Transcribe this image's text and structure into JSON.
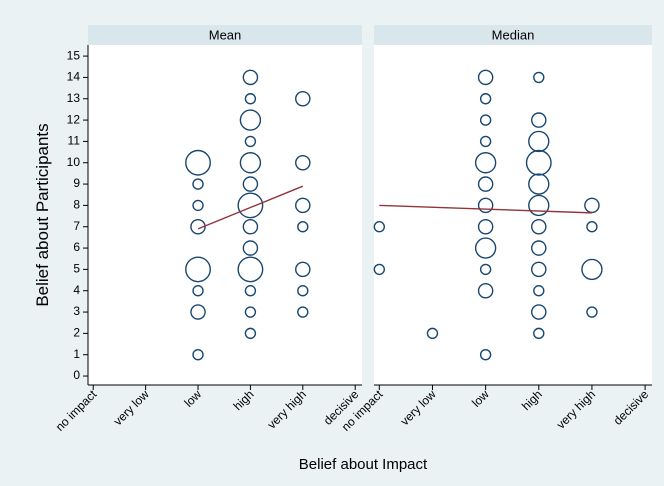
{
  "x_label": "Belief about Impact",
  "y_label": "Belief about Participants",
  "chart_data": [
    {
      "type": "scatter",
      "title": "Mean",
      "xlim": [
        0.9,
        6.13
      ],
      "ylim": [
        -0.42,
        15.52
      ],
      "xticks": [
        {
          "value": 1,
          "label": "no impact"
        },
        {
          "value": 2,
          "label": "very low"
        },
        {
          "value": 3,
          "label": "low"
        },
        {
          "value": 4,
          "label": "high"
        },
        {
          "value": 5,
          "label": "very high"
        },
        {
          "value": 6,
          "label": "decisive"
        }
      ],
      "yticks": [
        0,
        1,
        2,
        3,
        4,
        5,
        6,
        7,
        8,
        9,
        10,
        11,
        12,
        13,
        14,
        15
      ],
      "points": {
        "color": "#1a476f",
        "x": [
          3,
          3,
          3,
          3,
          3,
          3,
          3,
          3,
          4,
          4,
          4,
          4,
          4,
          4,
          4,
          4,
          4,
          4,
          4,
          4,
          4,
          5,
          5,
          5,
          5,
          5,
          5,
          5
        ],
        "y": [
          10,
          9,
          8,
          7,
          5,
          4,
          3,
          1,
          14,
          13,
          12,
          11,
          10,
          9,
          8,
          7,
          6,
          5,
          4,
          3,
          2,
          13,
          10,
          8,
          7,
          5,
          4,
          3
        ],
        "sizes": [
          6,
          1,
          1,
          2,
          6,
          1,
          2,
          1,
          2,
          1,
          4,
          1,
          4,
          2,
          6,
          2,
          2,
          6,
          1,
          1,
          1,
          2,
          2,
          2,
          1,
          2,
          1,
          1
        ]
      },
      "fit_line": {
        "color": "#90353b",
        "x": [
          3,
          5
        ],
        "y": [
          6.9,
          8.9
        ]
      }
    },
    {
      "type": "scatter",
      "title": "Median",
      "xlim": [
        0.9,
        6.13
      ],
      "xticks": [
        {
          "value": 1,
          "label": "no impact"
        },
        {
          "value": 2,
          "label": "very low"
        },
        {
          "value": 3,
          "label": "low"
        },
        {
          "value": 4,
          "label": "high"
        },
        {
          "value": 5,
          "label": "very high"
        },
        {
          "value": 6,
          "label": "decisive"
        }
      ],
      "points": {
        "color": "#1a476f",
        "x": [
          1,
          1,
          2,
          3,
          3,
          3,
          3,
          3,
          3,
          3,
          3,
          3,
          3,
          3,
          3,
          4,
          4,
          4,
          4,
          4,
          4,
          4,
          4,
          4,
          4,
          4,
          4,
          5,
          5,
          5,
          5
        ],
        "y": [
          7,
          5,
          2,
          14,
          13,
          12,
          11,
          10,
          9,
          8,
          7,
          6,
          5,
          4,
          1,
          14,
          12,
          11,
          10,
          9,
          8,
          7,
          6,
          5,
          4,
          3,
          2,
          8,
          7,
          5,
          3
        ],
        "sizes": [
          1,
          1,
          1,
          2,
          1,
          1,
          1,
          4,
          2,
          2,
          2,
          4,
          1,
          2,
          1,
          1,
          2,
          4,
          6,
          4,
          4,
          2,
          2,
          2,
          1,
          2,
          1,
          2,
          1,
          4,
          1
        ]
      },
      "fit_line": {
        "color": "#90353b",
        "x": [
          1,
          5
        ],
        "y": [
          8.0,
          7.65
        ]
      }
    }
  ]
}
